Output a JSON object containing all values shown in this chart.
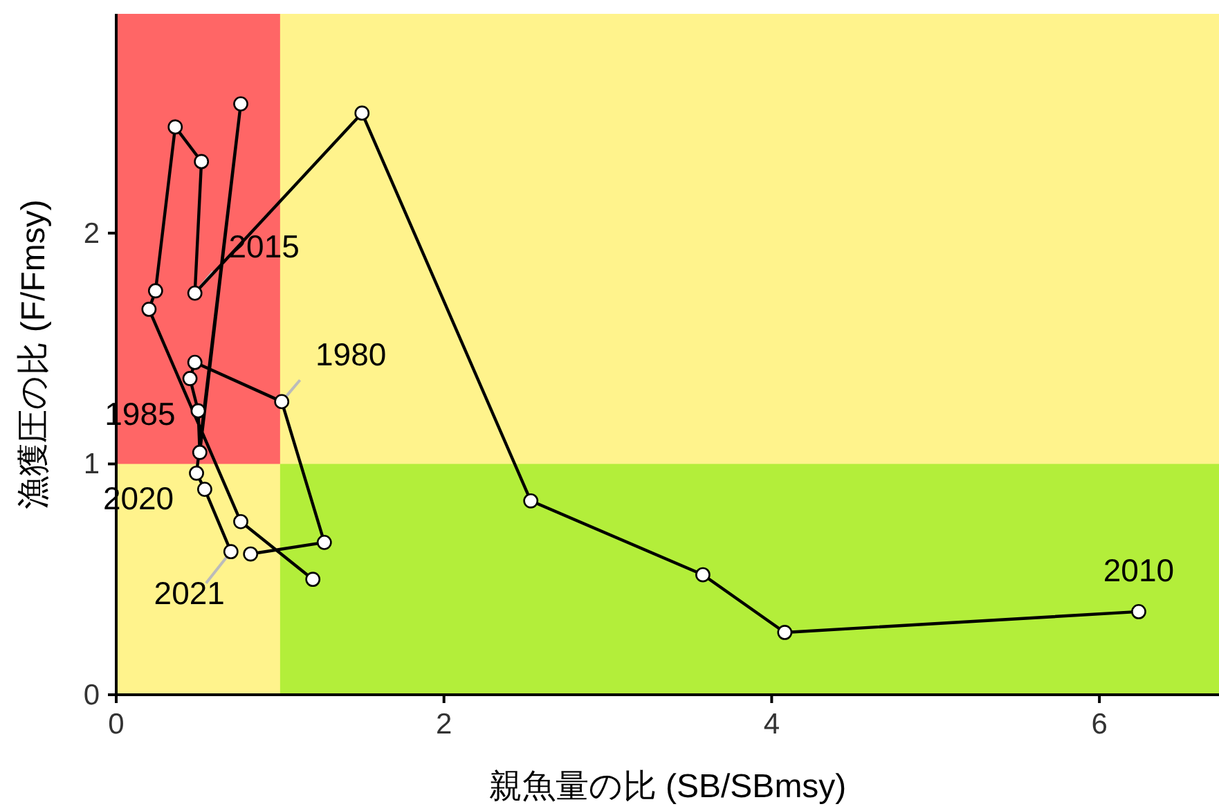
{
  "chart_data": {
    "type": "line",
    "xlabel": "親魚量の比 (SB/SBmsy)",
    "ylabel": "漁獲圧の比 (F/Fmsy)",
    "xlim": [
      0,
      6.73
    ],
    "ylim": [
      0,
      2.95
    ],
    "xticks": [
      0,
      2,
      4,
      6
    ],
    "yticks": [
      0,
      1,
      2
    ],
    "grid": false,
    "marker": "circle",
    "line_style": "solid",
    "series": [
      {
        "color": "#000000",
        "x": [
          1.2,
          0.76,
          0.2,
          0.24,
          0.36,
          0.52,
          0.48,
          1.5,
          2.53,
          3.58,
          4.08,
          6.24,
          null,
          0.82,
          1.27,
          1.01,
          0.48,
          0.45,
          0.5,
          0.51,
          0.76,
          0.49,
          0.54,
          0.7
        ],
        "values": [
          0.5,
          0.75,
          1.67,
          1.75,
          2.46,
          2.31,
          1.74,
          2.52,
          0.84,
          0.52,
          0.27,
          0.36,
          null,
          0.61,
          0.66,
          1.27,
          1.44,
          1.37,
          1.23,
          1.05,
          2.56,
          0.96,
          0.89,
          0.62
        ]
      }
    ],
    "bands": [
      {
        "axis": "x",
        "from": 0,
        "to": 1,
        "color": "#ff6666"
      },
      {
        "axis": "y",
        "from": 0,
        "to": 1,
        "color": "#b3ee3a"
      }
    ],
    "annotations": [
      {
        "text": "1980",
        "x": 1.01,
        "y": 1.27
      },
      {
        "text": "1985",
        "x": 0.5,
        "y": 1.23
      },
      {
        "text": "2010",
        "x": 6.24,
        "y": 0.36
      },
      {
        "text": "2015",
        "x": 0.48,
        "y": 1.74
      },
      {
        "text": "2020",
        "x": 0.49,
        "y": 0.96
      },
      {
        "text": "2021",
        "x": 0.7,
        "y": 0.62
      }
    ]
  }
}
